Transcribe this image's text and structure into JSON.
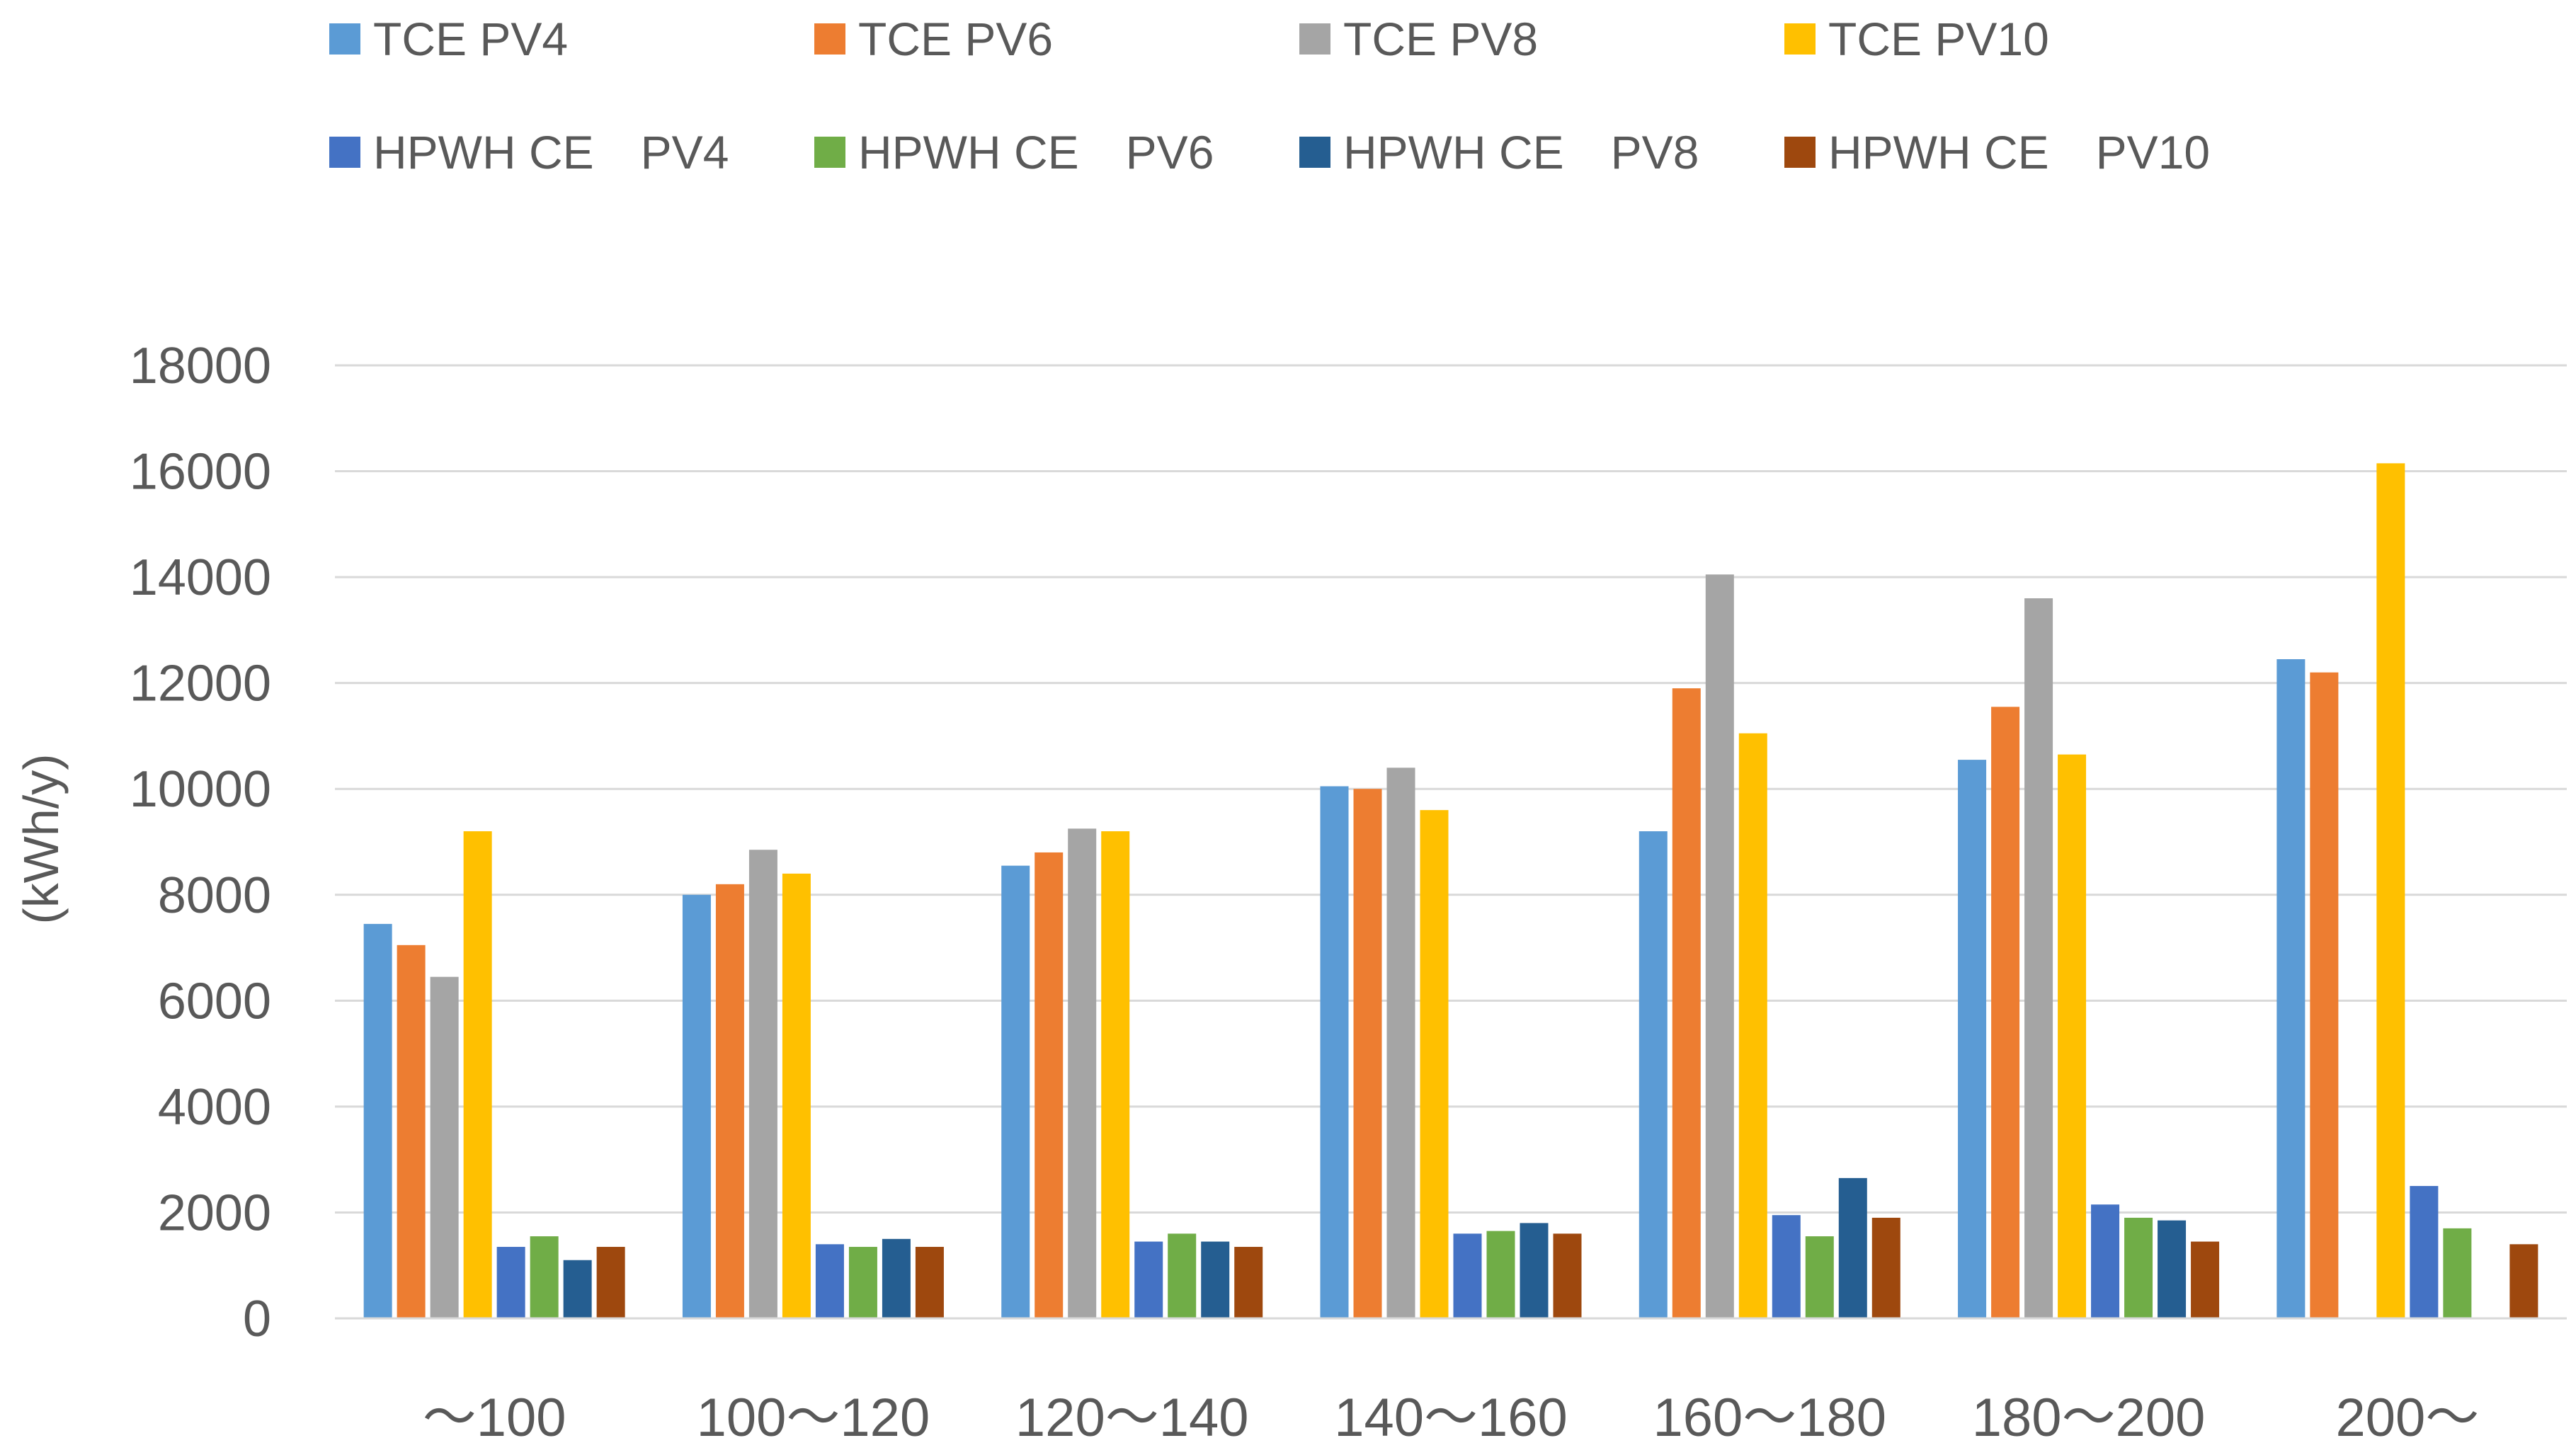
{
  "chart_data": {
    "type": "bar",
    "title": "",
    "xlabel": "",
    "ylabel": "(kWh/y)",
    "ylim": [
      0,
      18000
    ],
    "yticks": [
      0,
      2000,
      4000,
      6000,
      8000,
      10000,
      12000,
      14000,
      16000,
      18000
    ],
    "grid": true,
    "legend_position": "top",
    "categories": [
      "～100",
      "100～120",
      "120～140",
      "140～160",
      "160～180",
      "180～200",
      "200～"
    ],
    "series": [
      {
        "name": "TCE PV4",
        "color": "#5B9BD5",
        "values": [
          7450,
          8000,
          8550,
          10050,
          9200,
          10550,
          12450
        ]
      },
      {
        "name": "TCE PV6",
        "color": "#ED7D31",
        "values": [
          7050,
          8200,
          8800,
          10000,
          11900,
          11550,
          12200
        ]
      },
      {
        "name": "TCE PV8",
        "color": "#A5A5A5",
        "values": [
          6450,
          8850,
          9250,
          10400,
          14050,
          13600,
          null
        ]
      },
      {
        "name": "TCE PV10",
        "color": "#FFC000",
        "values": [
          9200,
          8400,
          9200,
          9600,
          11050,
          10650,
          16150
        ]
      },
      {
        "name": "HPWH CE　PV4",
        "color": "#4472C4",
        "values": [
          1350,
          1400,
          1450,
          1600,
          1950,
          2150,
          2500
        ]
      },
      {
        "name": "HPWH CE　PV6",
        "color": "#70AD47",
        "values": [
          1550,
          1350,
          1600,
          1650,
          1550,
          1900,
          1700
        ]
      },
      {
        "name": "HPWH CE　PV8",
        "color": "#255E91",
        "values": [
          1100,
          1500,
          1450,
          1800,
          2650,
          1850,
          null
        ]
      },
      {
        "name": "HPWH CE　PV10",
        "color": "#9E480E",
        "values": [
          1350,
          1350,
          1350,
          1600,
          1900,
          1450,
          1400
        ]
      }
    ]
  }
}
